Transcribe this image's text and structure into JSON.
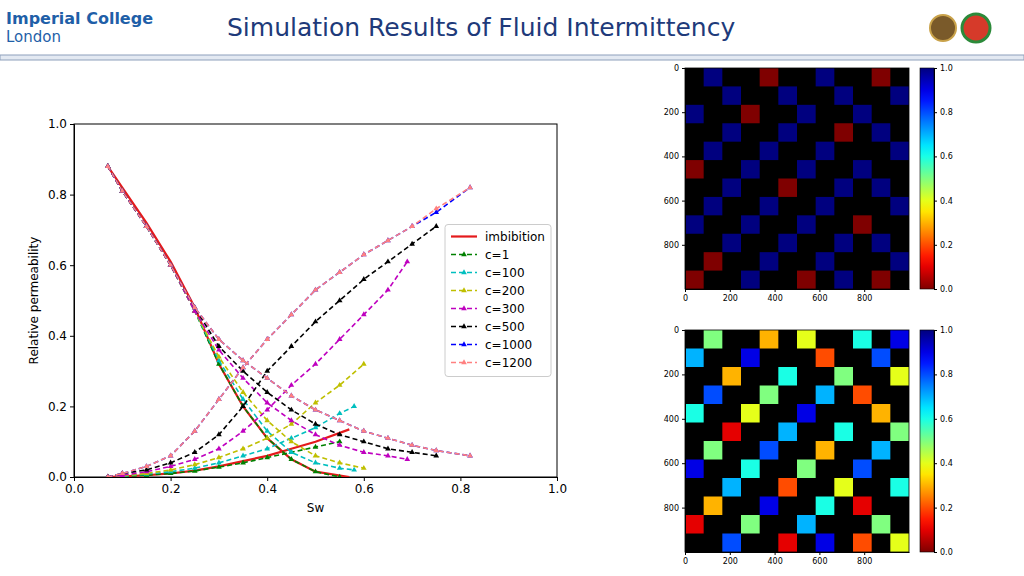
{
  "slide": {
    "title": "Simulation Results of Fluid Intermittency",
    "logo": [
      "Imperial College",
      "London"
    ]
  },
  "chart_data": [
    {
      "type": "line",
      "xlabel": "Sw",
      "ylabel": "Relative permeability",
      "xlim": [
        0,
        1
      ],
      "ylim": [
        0,
        1
      ],
      "xticks": [
        {
          "value": 0,
          "label": "0.0"
        },
        {
          "value": 0.2,
          "label": "0.2"
        },
        {
          "value": 0.4,
          "label": "0.4"
        },
        {
          "value": 0.6,
          "label": "0.6"
        },
        {
          "value": 0.8,
          "label": "0.8"
        },
        {
          "value": 1,
          "label": "1.0"
        }
      ],
      "yticks": [
        {
          "value": 0,
          "label": "0.0"
        },
        {
          "value": 0.2,
          "label": "0.2"
        },
        {
          "value": 0.4,
          "label": "0.4"
        },
        {
          "value": 0.6,
          "label": "0.6"
        },
        {
          "value": 0.8,
          "label": "0.8"
        },
        {
          "value": 1,
          "label": "1.0"
        }
      ],
      "legend": "center right",
      "grid": false,
      "series": [
        {
          "name": "imbibition",
          "color": "#e41a1c",
          "line_style": "solid",
          "marker": "none",
          "x": [
            0.07,
            0.1,
            0.15,
            0.2,
            0.25,
            0.3,
            0.35,
            0.4,
            0.45,
            0.5,
            0.57
          ],
          "krw": [
            0,
            0.002,
            0.005,
            0.01,
            0.018,
            0.03,
            0.045,
            0.06,
            0.08,
            0.1,
            0.135
          ],
          "kro": [
            0.88,
            0.82,
            0.72,
            0.61,
            0.48,
            0.32,
            0.2,
            0.11,
            0.05,
            0.015,
            0
          ]
        },
        {
          "name": "c=1",
          "color": "#008000",
          "line_style": "dashed",
          "marker": "triangle",
          "x": [
            0.07,
            0.1,
            0.15,
            0.2,
            0.25,
            0.3,
            0.35,
            0.4,
            0.45,
            0.5,
            0.55
          ],
          "krw": [
            0,
            0.002,
            0.005,
            0.01,
            0.017,
            0.028,
            0.04,
            0.055,
            0.07,
            0.085,
            0.1
          ],
          "kro": [
            0.88,
            0.81,
            0.71,
            0.6,
            0.47,
            0.32,
            0.2,
            0.11,
            0.05,
            0.015,
            0
          ]
        },
        {
          "name": "c=100",
          "color": "#00bfbf",
          "line_style": "dashed",
          "marker": "triangle",
          "x": [
            0.07,
            0.1,
            0.15,
            0.2,
            0.25,
            0.3,
            0.35,
            0.4,
            0.45,
            0.5,
            0.55,
            0.58
          ],
          "krw": [
            0,
            0.002,
            0.008,
            0.015,
            0.025,
            0.04,
            0.06,
            0.08,
            0.11,
            0.14,
            0.18,
            0.2
          ],
          "kro": [
            0.88,
            0.81,
            0.71,
            0.6,
            0.47,
            0.33,
            0.22,
            0.13,
            0.07,
            0.04,
            0.025,
            0.02
          ]
        },
        {
          "name": "c=200",
          "color": "#bfbf00",
          "line_style": "dashed",
          "marker": "triangle",
          "x": [
            0.07,
            0.1,
            0.15,
            0.2,
            0.25,
            0.3,
            0.35,
            0.4,
            0.45,
            0.5,
            0.55,
            0.6
          ],
          "krw": [
            0,
            0.003,
            0.01,
            0.02,
            0.035,
            0.055,
            0.08,
            0.11,
            0.15,
            0.21,
            0.26,
            0.32
          ],
          "kro": [
            0.88,
            0.81,
            0.71,
            0.6,
            0.47,
            0.34,
            0.24,
            0.16,
            0.1,
            0.06,
            0.04,
            0.025
          ]
        },
        {
          "name": "c=300",
          "color": "#bf00bf",
          "line_style": "dashed",
          "marker": "triangle",
          "x": [
            0.07,
            0.1,
            0.15,
            0.2,
            0.25,
            0.3,
            0.35,
            0.4,
            0.45,
            0.5,
            0.55,
            0.6,
            0.65,
            0.69
          ],
          "krw": [
            0,
            0.005,
            0.015,
            0.03,
            0.05,
            0.08,
            0.13,
            0.19,
            0.26,
            0.32,
            0.39,
            0.46,
            0.53,
            0.61
          ],
          "kro": [
            0.88,
            0.81,
            0.71,
            0.6,
            0.47,
            0.36,
            0.28,
            0.21,
            0.16,
            0.12,
            0.09,
            0.07,
            0.06,
            0.05
          ]
        },
        {
          "name": "c=500",
          "color": "#000000",
          "line_style": "dashed",
          "marker": "triangle",
          "x": [
            0.07,
            0.1,
            0.15,
            0.2,
            0.25,
            0.3,
            0.35,
            0.4,
            0.45,
            0.5,
            0.55,
            0.6,
            0.65,
            0.7,
            0.75
          ],
          "krw": [
            0,
            0.01,
            0.02,
            0.04,
            0.07,
            0.12,
            0.2,
            0.3,
            0.37,
            0.44,
            0.5,
            0.56,
            0.61,
            0.66,
            0.71
          ],
          "kro": [
            0.88,
            0.81,
            0.71,
            0.6,
            0.48,
            0.37,
            0.3,
            0.24,
            0.19,
            0.15,
            0.12,
            0.1,
            0.08,
            0.07,
            0.06
          ]
        },
        {
          "name": "c=1000",
          "color": "#0000ff",
          "line_style": "dashed",
          "marker": "triangle",
          "x": [
            0.07,
            0.1,
            0.15,
            0.2,
            0.25,
            0.3,
            0.35,
            0.4,
            0.45,
            0.5,
            0.55,
            0.6,
            0.65,
            0.7,
            0.75,
            0.82
          ],
          "krw": [
            0,
            0.01,
            0.03,
            0.06,
            0.13,
            0.22,
            0.31,
            0.39,
            0.46,
            0.53,
            0.58,
            0.63,
            0.67,
            0.71,
            0.75,
            0.82
          ],
          "kro": [
            0.88,
            0.81,
            0.71,
            0.6,
            0.48,
            0.39,
            0.33,
            0.28,
            0.23,
            0.19,
            0.16,
            0.13,
            0.11,
            0.09,
            0.075,
            0.06
          ]
        },
        {
          "name": "c=1200",
          "color": "#ff8080",
          "line_style": "dashed",
          "marker": "triangle",
          "x": [
            0.07,
            0.1,
            0.15,
            0.2,
            0.25,
            0.3,
            0.35,
            0.4,
            0.45,
            0.5,
            0.55,
            0.6,
            0.65,
            0.7,
            0.75,
            0.82
          ],
          "krw": [
            0,
            0.01,
            0.03,
            0.06,
            0.13,
            0.22,
            0.31,
            0.39,
            0.46,
            0.53,
            0.58,
            0.63,
            0.67,
            0.71,
            0.76,
            0.82
          ],
          "kro": [
            0.88,
            0.81,
            0.71,
            0.6,
            0.48,
            0.39,
            0.33,
            0.28,
            0.23,
            0.19,
            0.16,
            0.13,
            0.11,
            0.09,
            0.075,
            0.06
          ]
        }
      ]
    },
    {
      "type": "heatmap",
      "xlim": [
        0,
        1000
      ],
      "ylim": [
        0,
        1000
      ],
      "xticks": [
        0,
        200,
        400,
        600,
        800
      ],
      "yticks": [
        0,
        200,
        400,
        600,
        800
      ],
      "colorbar_range": [
        0,
        1
      ],
      "colorbar_ticks": [
        {
          "value": 0,
          "label": "0.0"
        },
        {
          "value": 0.2,
          "label": "0.2"
        },
        {
          "value": 0.4,
          "label": "0.4"
        },
        {
          "value": 0.6,
          "label": "0.6"
        },
        {
          "value": 0.8,
          "label": "0.8"
        },
        {
          "value": 1,
          "label": "1.0"
        }
      ],
      "cells": [
        [
          null,
          1,
          null,
          null,
          0,
          null,
          null,
          1,
          null,
          null,
          0,
          null
        ],
        [
          null,
          null,
          1,
          null,
          null,
          1,
          null,
          null,
          1,
          null,
          null,
          1
        ],
        [
          1,
          null,
          null,
          0,
          null,
          null,
          1,
          null,
          null,
          1,
          null,
          null
        ],
        [
          null,
          null,
          1,
          null,
          null,
          1,
          null,
          null,
          0,
          null,
          1,
          null
        ],
        [
          null,
          1,
          null,
          null,
          1,
          null,
          null,
          1,
          null,
          null,
          null,
          1
        ],
        [
          0,
          null,
          null,
          1,
          null,
          null,
          1,
          null,
          null,
          1,
          null,
          null
        ],
        [
          null,
          null,
          1,
          null,
          null,
          0,
          null,
          null,
          1,
          null,
          1,
          null
        ],
        [
          null,
          1,
          null,
          null,
          1,
          null,
          null,
          1,
          null,
          null,
          null,
          1
        ],
        [
          1,
          null,
          null,
          1,
          null,
          null,
          1,
          null,
          null,
          0,
          null,
          null
        ],
        [
          null,
          null,
          1,
          null,
          null,
          1,
          null,
          null,
          1,
          null,
          1,
          null
        ],
        [
          null,
          0,
          null,
          null,
          1,
          null,
          null,
          1,
          null,
          null,
          null,
          1
        ],
        [
          0,
          null,
          null,
          1,
          null,
          null,
          0,
          null,
          1,
          null,
          0,
          null
        ]
      ]
    },
    {
      "type": "heatmap",
      "xlim": [
        0,
        1000
      ],
      "ylim": [
        0,
        1000
      ],
      "xticks": [
        0,
        200,
        400,
        600,
        800
      ],
      "yticks": [
        0,
        200,
        400,
        600,
        800
      ],
      "colorbar_range": [
        0,
        1
      ],
      "colorbar_ticks": [
        {
          "value": 0,
          "label": "0.0"
        },
        {
          "value": 0.2,
          "label": "0.2"
        },
        {
          "value": 0.4,
          "label": "0.4"
        },
        {
          "value": 0.6,
          "label": "0.6"
        },
        {
          "value": 0.8,
          "label": "0.8"
        },
        {
          "value": 1,
          "label": "1.0"
        }
      ],
      "cells": [
        [
          null,
          0.5,
          null,
          null,
          0.3,
          null,
          0.4,
          null,
          null,
          0.6,
          null,
          0.9
        ],
        [
          0.7,
          null,
          null,
          0.9,
          null,
          null,
          null,
          0.2,
          null,
          null,
          0.8,
          null
        ],
        [
          null,
          null,
          0.3,
          null,
          null,
          0.6,
          null,
          null,
          0.5,
          null,
          null,
          0.4
        ],
        [
          null,
          0.8,
          null,
          null,
          0.5,
          null,
          null,
          0.7,
          null,
          0.2,
          null,
          null
        ],
        [
          0.6,
          null,
          null,
          0.4,
          null,
          null,
          0.9,
          null,
          null,
          null,
          0.3,
          null
        ],
        [
          null,
          null,
          0.1,
          null,
          null,
          0.7,
          null,
          null,
          0.6,
          null,
          null,
          0.5
        ],
        [
          null,
          0.5,
          null,
          null,
          0.8,
          null,
          null,
          0.3,
          null,
          null,
          0.7,
          null
        ],
        [
          0.9,
          null,
          null,
          0.6,
          null,
          null,
          0.5,
          null,
          null,
          0.8,
          null,
          null
        ],
        [
          null,
          null,
          0.7,
          null,
          null,
          0.2,
          null,
          null,
          0.4,
          null,
          null,
          0.6
        ],
        [
          null,
          0.3,
          null,
          null,
          0.9,
          null,
          null,
          0.6,
          null,
          0.1,
          null,
          null
        ],
        [
          0.1,
          null,
          null,
          0.5,
          null,
          null,
          0.7,
          null,
          null,
          null,
          0.5,
          null
        ],
        [
          null,
          null,
          0.8,
          null,
          null,
          0.1,
          null,
          0.9,
          null,
          0.2,
          null,
          0.4
        ]
      ]
    }
  ]
}
